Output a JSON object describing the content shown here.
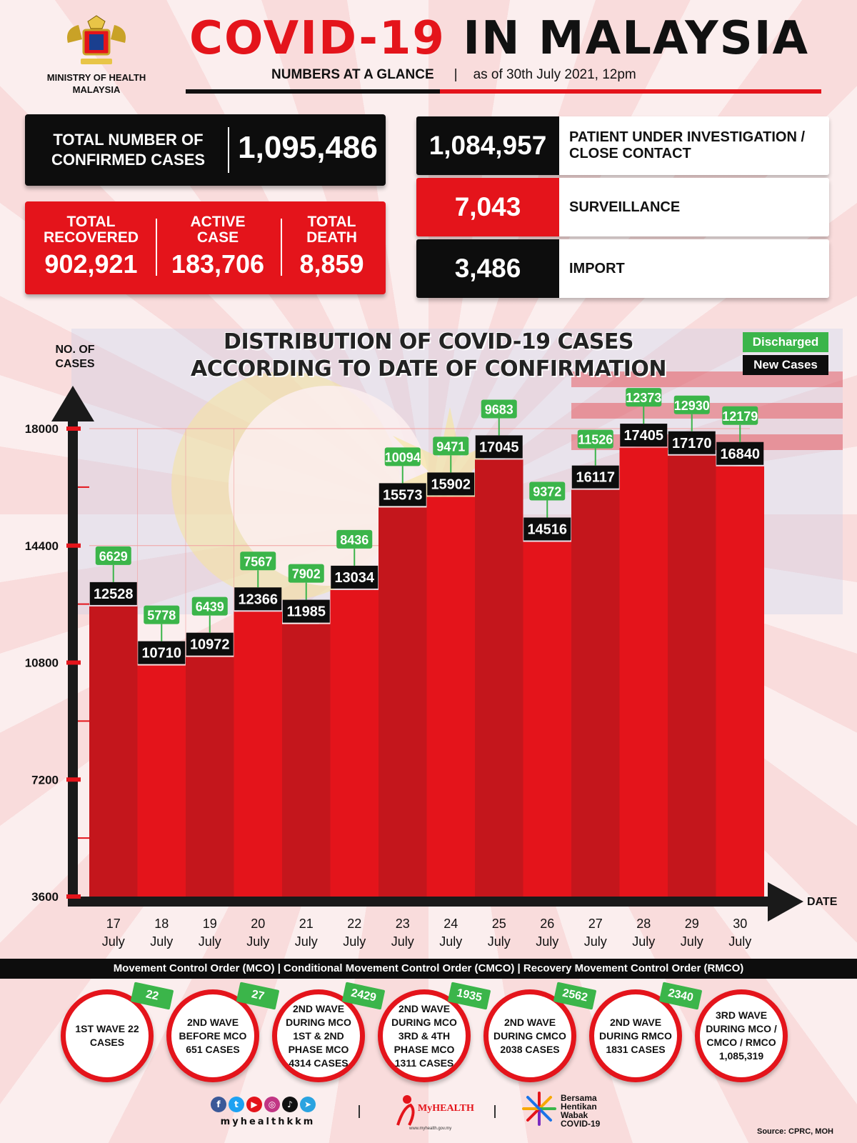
{
  "header": {
    "ministry": "MINISTRY OF HEALTH MALAYSIA",
    "title_red": "COVID-19",
    "title_black": "IN MALAYSIA",
    "subtitle": "NUMBERS AT A GLANCE",
    "as_of": "as of 30th July 2021, 12pm"
  },
  "stats": {
    "confirmed_label": "TOTAL NUMBER OF CONFIRMED CASES",
    "confirmed_value": "1,095,486",
    "recovered_label": "TOTAL RECOVERED",
    "recovered_value": "902,921",
    "active_label": "ACTIVE CASE",
    "active_value": "183,706",
    "death_label": "TOTAL DEATH",
    "death_value": "8,859",
    "pui_value": "1,084,957",
    "pui_label": "PATIENT UNDER INVESTIGATION / CLOSE CONTACT",
    "surveillance_value": "7,043",
    "surveillance_label": "SURVEILLANCE",
    "import_value": "3,486",
    "import_label": "IMPORT"
  },
  "colors": {
    "red": "#e4141b",
    "black": "#0d0d0d",
    "green": "#3bb54a"
  },
  "chart_data": {
    "type": "bar",
    "title": "DISTRIBUTION OF COVID-19 CASES ACCORDING TO DATE OF CONFIRMATION",
    "ylabel": "NO. OF CASES",
    "xlabel": "DATE",
    "ylim": [
      3600,
      18000
    ],
    "yticks": [
      "3600",
      "7200",
      "10800",
      "14400",
      "18000"
    ],
    "categories": [
      "17 July",
      "18 July",
      "19 July",
      "20 July",
      "21 July",
      "22 July",
      "23 July",
      "24 July",
      "25 July",
      "26 July",
      "27 July",
      "28 July",
      "29 July",
      "30 July"
    ],
    "category_day": [
      "17",
      "18",
      "19",
      "20",
      "21",
      "22",
      "23",
      "24",
      "25",
      "26",
      "27",
      "28",
      "29",
      "30"
    ],
    "category_month": "July",
    "series": [
      {
        "name": "New Cases",
        "values": [
          12528,
          10710,
          10972,
          12366,
          11985,
          13034,
          15573,
          15902,
          17045,
          14516,
          16117,
          17405,
          17170,
          16840
        ]
      },
      {
        "name": "Discharged",
        "values": [
          6629,
          5778,
          6439,
          7567,
          7902,
          8436,
          10094,
          9471,
          9683,
          9372,
          11526,
          12373,
          12930,
          12179
        ]
      }
    ],
    "legend": [
      "Discharged",
      "New Cases"
    ],
    "legend_position": "top-right"
  },
  "mco_bar": "Movement Control Order (MCO) | Conditional Movement Control Order (CMCO) | Recovery Movement Control Order (RMCO)",
  "waves": [
    {
      "text": "1ST WAVE 22 CASES",
      "badge": "22"
    },
    {
      "text": "2ND WAVE BEFORE MCO 651 CASES",
      "badge": "27"
    },
    {
      "text": "2ND WAVE DURING MCO 1ST & 2ND PHASE MCO 4314 CASES",
      "badge": "2429"
    },
    {
      "text": "2ND WAVE DURING MCO 3RD & 4TH PHASE MCO 1311 CASES",
      "badge": "1935"
    },
    {
      "text": "2ND WAVE DURING CMCO 2038 CASES",
      "badge": "2562"
    },
    {
      "text": "2ND WAVE DURING RMCO 1831 CASES",
      "badge": "2340"
    },
    {
      "text": "3RD WAVE DURING MCO / CMCO / RMCO 1,085,319",
      "badge": ""
    }
  ],
  "footer": {
    "handle": "myhealthkkm",
    "myhealth": "MyHEALTH",
    "myhealth_url": "www.myhealth.gov.my",
    "bersama": "Bersama Hentikan Wabak COVID-19",
    "source": "Source: CPRC, MOH"
  }
}
